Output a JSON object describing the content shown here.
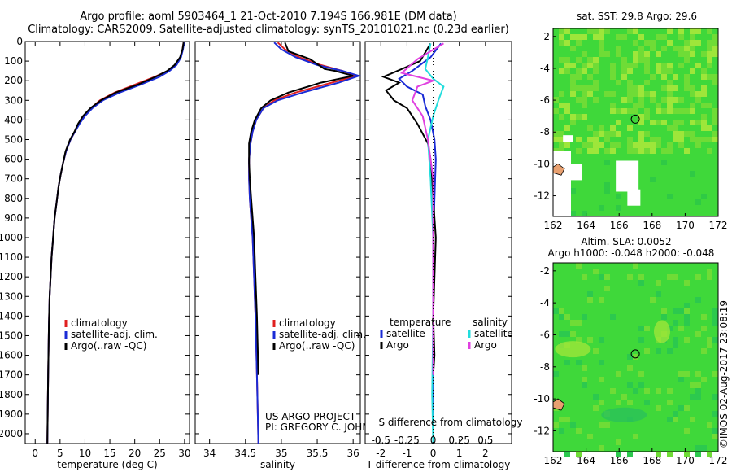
{
  "header": {
    "title_line1": "Argo profile: aoml 5903464_1 21-Oct-2010 7.194S 166.981E (DM data)",
    "title_line2": "Climatology: CARS2009. Satellite-adjusted climatology: synTS_20101021.nc (0.23d earlier)"
  },
  "colors": {
    "climatology": "#e02020",
    "satellite": "#1a2bd6",
    "argo": "#000000",
    "sal_satellite": "#22dddd",
    "sal_argo": "#e040e0"
  },
  "chart_data": [
    {
      "type": "line",
      "name": "temperature",
      "xlabel": "temperature (deg C)",
      "ylabel": "",
      "xlim": [
        -2,
        31
      ],
      "ylim": [
        2050,
        0
      ],
      "xticks": [
        0,
        5,
        10,
        15,
        20,
        25,
        30
      ],
      "yticks": [
        0,
        100,
        200,
        300,
        400,
        500,
        600,
        700,
        800,
        900,
        1000,
        1100,
        1200,
        1300,
        1400,
        1500,
        1600,
        1700,
        1800,
        1900,
        2000
      ],
      "legend": [
        "climatology",
        "satellite-adj. clim.",
        "Argo(..raw -QC)"
      ],
      "series": [
        {
          "name": "climatology",
          "color": "#e02020",
          "x": [
            29.8,
            29.6,
            29.2,
            28.3,
            26.6,
            24,
            20,
            16,
            13,
            11.2,
            9.8,
            8.8,
            8,
            7.1,
            6.2,
            5.6,
            5.1,
            4.7,
            4.3,
            3.9,
            3.6,
            3.3,
            3.1,
            2.9,
            2.75,
            2.6,
            2.45
          ],
          "y": [
            5,
            40,
            80,
            120,
            150,
            180,
            220,
            260,
            300,
            340,
            380,
            420,
            460,
            500,
            560,
            620,
            680,
            740,
            820,
            900,
            1000,
            1100,
            1200,
            1300,
            1450,
            1700,
            2050
          ]
        },
        {
          "name": "satellite",
          "color": "#1a2bd6",
          "x": [
            29.9,
            29.7,
            29.3,
            28.4,
            27,
            25,
            21.2,
            17,
            13.6,
            11.5,
            10,
            8.9,
            8,
            7.1,
            6.2,
            5.6,
            5.1,
            4.7,
            4.3,
            3.9,
            3.6,
            3.3,
            3.1,
            2.9,
            2.75,
            2.6,
            2.45
          ],
          "y": [
            5,
            40,
            80,
            120,
            150,
            180,
            220,
            260,
            300,
            340,
            380,
            420,
            460,
            500,
            560,
            620,
            680,
            740,
            820,
            900,
            1000,
            1100,
            1200,
            1300,
            1450,
            1700,
            2050
          ]
        },
        {
          "name": "Argo",
          "color": "#000000",
          "x": [
            29.8,
            29.6,
            29.1,
            28,
            26.5,
            24.2,
            20.6,
            16.2,
            13.2,
            11.1,
            9.6,
            8.6,
            7.9,
            7,
            6.1,
            5.6,
            5.1,
            4.7,
            4.3,
            3.9,
            3.6,
            3.3,
            3.1,
            2.9,
            2.75,
            2.6,
            2.45
          ],
          "y": [
            5,
            40,
            80,
            120,
            150,
            180,
            220,
            260,
            300,
            340,
            380,
            420,
            460,
            500,
            560,
            620,
            680,
            740,
            820,
            900,
            1000,
            1100,
            1200,
            1300,
            1450,
            1700,
            2050
          ]
        }
      ]
    },
    {
      "type": "line",
      "name": "salinity",
      "xlabel": "salinity",
      "xlim": [
        33.8,
        36.1
      ],
      "ylim": [
        2050,
        0
      ],
      "xticks": [
        34,
        34.5,
        35,
        35.5,
        36
      ],
      "xticklabels": [
        "34",
        "34.5",
        "35",
        "35.5",
        "36"
      ],
      "legend": [
        "climatology",
        "satellite-adj. clim.",
        "Argo(..raw -QC)"
      ],
      "annotations": [
        "US ARGO PROJECT",
        "PI: GREGORY C. JOHNSON"
      ],
      "series": [
        {
          "name": "climatology",
          "color": "#e02020",
          "x": [
            34.95,
            35.05,
            35.25,
            35.55,
            35.85,
            36.05,
            35.7,
            35.2,
            34.9,
            34.75,
            34.65,
            34.6,
            34.57,
            34.55,
            34.55,
            34.56,
            34.58,
            34.6,
            34.62,
            34.64,
            34.66,
            34.68
          ],
          "y": [
            5,
            40,
            80,
            120,
            150,
            175,
            210,
            260,
            300,
            340,
            400,
            460,
            520,
            600,
            700,
            800,
            900,
            1000,
            1200,
            1400,
            1700,
            2050
          ]
        },
        {
          "name": "satellite",
          "color": "#1a2bd6",
          "x": [
            34.9,
            35,
            35.2,
            35.5,
            35.85,
            36.08,
            35.8,
            35.3,
            34.95,
            34.75,
            34.65,
            34.6,
            34.57,
            34.55,
            34.55,
            34.56,
            34.58,
            34.6,
            34.62,
            34.64,
            34.66,
            34.68
          ],
          "y": [
            5,
            40,
            80,
            120,
            150,
            175,
            210,
            260,
            300,
            340,
            400,
            460,
            520,
            600,
            700,
            800,
            900,
            1000,
            1200,
            1400,
            1700,
            2050
          ]
        },
        {
          "name": "Argo",
          "color": "#000000",
          "x": [
            35.05,
            35.1,
            35.4,
            35.6,
            35.75,
            36,
            35.55,
            35.1,
            34.85,
            34.72,
            34.63,
            34.58,
            34.55,
            34.55,
            34.56,
            34.58,
            34.6,
            34.62,
            34.64,
            34.66,
            34.68
          ],
          "y": [
            5,
            50,
            90,
            140,
            150,
            175,
            210,
            260,
            300,
            340,
            400,
            460,
            520,
            620,
            700,
            800,
            900,
            1000,
            1200,
            1400,
            1700
          ]
        }
      ]
    },
    {
      "type": "line",
      "name": "difference from climatology",
      "xlabel": "T difference from climatology",
      "xlabel_top": "S difference from climatology",
      "xlim": [
        -2.6,
        3
      ],
      "ylim": [
        2050,
        0
      ],
      "xticks": [
        -2,
        -1,
        0,
        1,
        2
      ],
      "sticks": [
        -0.5,
        -0.25,
        0,
        0.25,
        0.5
      ],
      "sticklabels": [
        "-0.5",
        "-0.25",
        "0",
        "0.25",
        "0.5"
      ],
      "legend_temperature": [
        "temperature",
        "satellite",
        "Argo"
      ],
      "legend_salinity": [
        "salinity",
        "satellite",
        "Argo"
      ],
      "series": [
        {
          "name": "temperature satellite",
          "color": "#1a2bd6",
          "x": [
            0.3,
            -0.1,
            -0.8,
            -1.3,
            -1,
            -0.4,
            -0.3,
            -0.1,
            0.05,
            0.1,
            0.05,
            0,
            0,
            0,
            0
          ],
          "y": [
            10,
            80,
            150,
            190,
            230,
            270,
            330,
            400,
            500,
            600,
            800,
            1000,
            1400,
            1800,
            2050
          ]
        },
        {
          "name": "temperature Argo",
          "color": "#000000",
          "x": [
            -0.1,
            -0.5,
            -1.9,
            -1.3,
            -1.8,
            -1.5,
            -1,
            -0.8,
            -0.6,
            -0.4,
            -0.2,
            -0.1,
            0,
            0.1,
            0,
            0.05,
            0
          ],
          "y": [
            10,
            100,
            180,
            210,
            250,
            300,
            340,
            380,
            420,
            470,
            520,
            600,
            800,
            1000,
            1400,
            1600,
            1700
          ]
        },
        {
          "name": "salinity satellite",
          "color": "#22dddd",
          "x": [
            -0.05,
            -0.1,
            -0.15,
            0,
            0.2,
            0.1,
            0,
            -0.1,
            -0.05,
            0,
            0,
            -0.02,
            0
          ],
          "y": [
            10,
            80,
            140,
            190,
            230,
            300,
            380,
            500,
            700,
            1000,
            1400,
            1800,
            2050
          ]
        },
        {
          "name": "salinity Argo",
          "color": "#e040e0",
          "x": [
            0.2,
            -0.3,
            -0.6,
            0,
            -0.3,
            -0.4,
            -0.2,
            -0.1,
            0,
            0,
            0
          ],
          "y": [
            10,
            90,
            160,
            200,
            230,
            300,
            380,
            500,
            700,
            1000,
            1700
          ]
        }
      ]
    },
    {
      "type": "heatmap",
      "name": "sst map",
      "title": "sat. SST: 29.8  Argo: 29.6",
      "xlim": [
        162,
        172
      ],
      "ylim": [
        -13.3,
        -1.5
      ],
      "xticks": [
        162,
        164,
        166,
        168,
        170,
        172
      ],
      "yticks": [
        -2,
        -4,
        -6,
        -8,
        -10,
        -12
      ],
      "marker": {
        "lon": 166.98,
        "lat": -7.19
      }
    },
    {
      "type": "heatmap",
      "name": "sla map",
      "title_line1": "Altim. SLA: 0.0052",
      "title_line2": "Argo h1000: -0.048 h2000: -0.048",
      "xlim": [
        162,
        172
      ],
      "ylim": [
        -13.3,
        -1.5
      ],
      "xticks": [
        162,
        164,
        166,
        168,
        170,
        172
      ],
      "yticks": [
        -2,
        -4,
        -6,
        -8,
        -10,
        -12
      ],
      "marker": {
        "lon": 166.98,
        "lat": -7.19
      }
    }
  ],
  "side_label": "©IMOS 02-Aug-2017 23:08:19"
}
